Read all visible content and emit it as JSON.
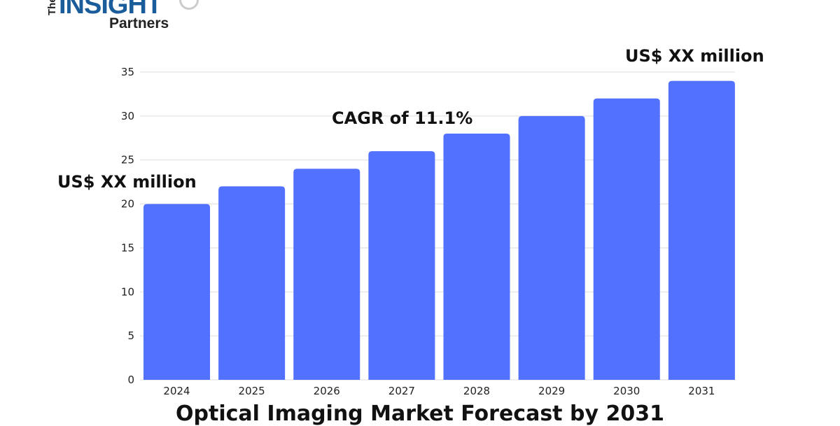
{
  "logo": {
    "line1": "The",
    "line2": "INSIGHT",
    "line3": "Partners"
  },
  "annotations": {
    "start": "US$ XX million",
    "cagr": "CAGR of 11.1%",
    "end": "US$ XX million"
  },
  "colors": {
    "bar": "#5271FF",
    "grid": "#dddddd"
  },
  "chart_data": {
    "type": "bar",
    "title": "Optical Imaging Market Forecast by 2031",
    "categories": [
      "2024",
      "2025",
      "2026",
      "2027",
      "2028",
      "2029",
      "2030",
      "2031"
    ],
    "values": [
      20,
      22,
      24,
      26,
      28,
      30,
      32,
      34
    ],
    "yticks": [
      0,
      5,
      10,
      15,
      20,
      25,
      30,
      35
    ],
    "ylim": [
      0,
      35
    ],
    "grid": true,
    "xlabel": "",
    "ylabel": ""
  }
}
